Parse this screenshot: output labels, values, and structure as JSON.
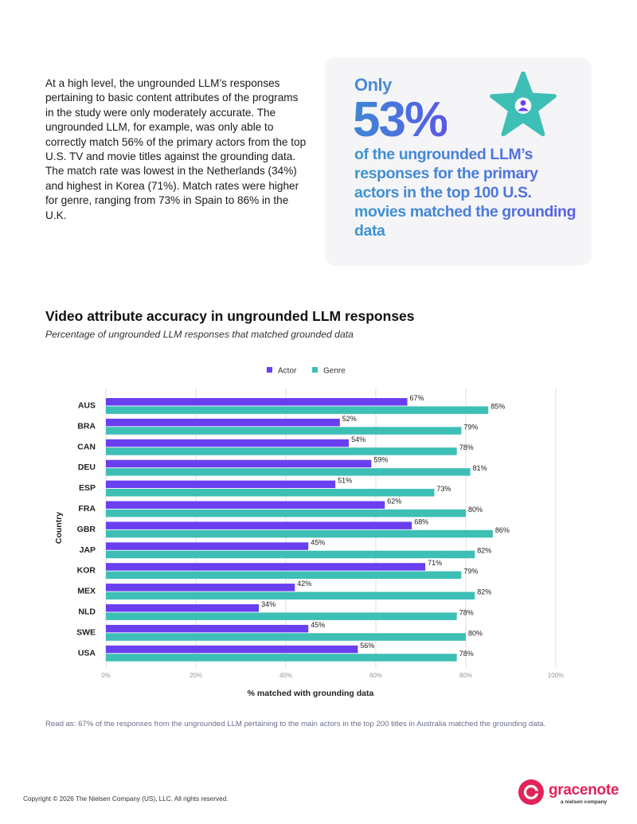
{
  "intro_text": "At a high level, the ungrounded LLM’s responses pertaining to basic content attributes of the programs in the study were only moderately accurate. The ungrounded LLM, for example, was only able to correctly match 56% of the primary actors from the top U.S. TV and movie titles against the grounding data. The match rate was lowest in the Netherlands (34%) and highest in Korea (71%). Match rates were higher for genre, ranging from 73% in Spain to 86% in the U.K.",
  "callout": {
    "only": "Only",
    "percent": "53%",
    "description": "of the ungrounded LLM’s responses for the primary actors in the top 100 U.S. movies matched the grounding data",
    "icon": "star-person-icon"
  },
  "chart_data": {
    "type": "bar",
    "orientation": "horizontal",
    "title": "Video attribute accuracy in ungrounded LLM responses",
    "subtitle": "Percentage of ungrounded LLM responses that matched grounded data",
    "xlabel": "% matched with grounding data",
    "ylabel": "Country",
    "xlim": [
      0,
      100
    ],
    "x_ticks": [
      "0%",
      "20%",
      "40%",
      "60%",
      "80%",
      "100%"
    ],
    "grid": true,
    "legend_position": "top-center",
    "categories": [
      "AUS",
      "BRA",
      "CAN",
      "DEU",
      "ESP",
      "FRA",
      "GBR",
      "JAP",
      "KOR",
      "MEX",
      "NLD",
      "SWE",
      "USA"
    ],
    "series": [
      {
        "name": "Actor",
        "color": "#6a3ff0",
        "values": [
          67,
          52,
          54,
          59,
          51,
          62,
          68,
          45,
          71,
          42,
          34,
          45,
          56
        ]
      },
      {
        "name": "Genre",
        "color": "#3dbfb6",
        "values": [
          85,
          79,
          78,
          81,
          73,
          80,
          86,
          82,
          79,
          82,
          78,
          80,
          78
        ]
      }
    ]
  },
  "note": "Read as: 67% of the responses from the ungrounded LLM pertaining to the main actors in the top 200 titles in Australia matched the grounding data.",
  "copyright": "Copyright © 2026 The Nielsen Company (US), LLC. All rights reserved.",
  "logo": {
    "word": "gracenote",
    "sub": "a nielsen company",
    "color": "#e2235a"
  }
}
